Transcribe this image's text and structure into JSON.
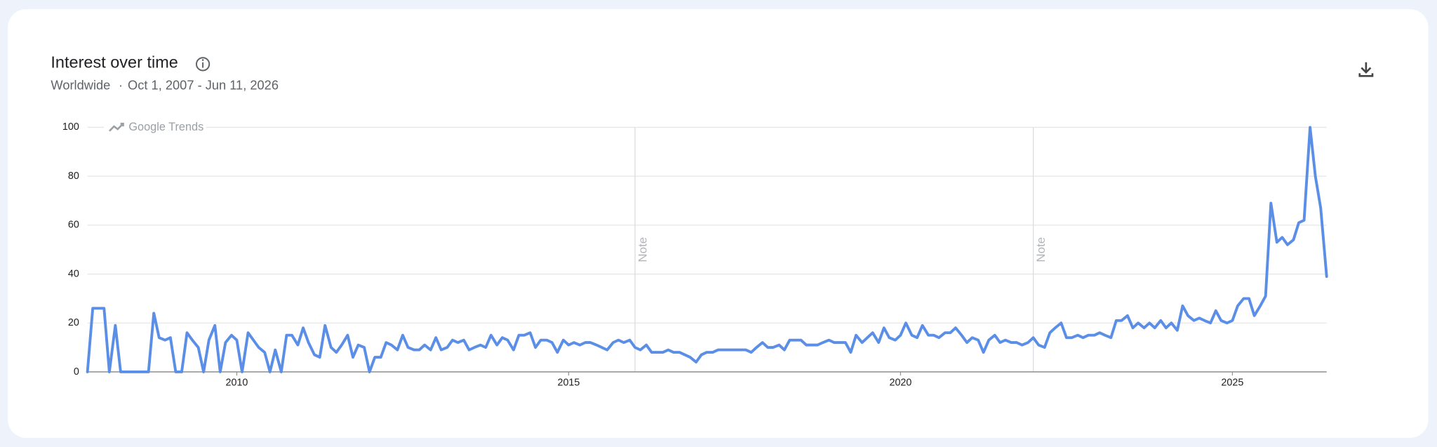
{
  "header": {
    "title": "Interest over time",
    "region": "Worldwide",
    "period": "Oct 1, 2007 - Jun 11, 2026",
    "watermark": "Google Trends"
  },
  "chart_data": {
    "type": "line",
    "x": [
      2007.75,
      2007.83,
      2007.92,
      2008,
      2008.08,
      2008.17,
      2008.25,
      2008.33,
      2008.42,
      2008.5,
      2008.58,
      2008.67,
      2008.75,
      2008.83,
      2008.92,
      2009,
      2009.08,
      2009.17,
      2009.25,
      2009.33,
      2009.42,
      2009.5,
      2009.58,
      2009.67,
      2009.75,
      2009.83,
      2009.92,
      2010,
      2010.08,
      2010.17,
      2010.25,
      2010.33,
      2010.42,
      2010.5,
      2010.58,
      2010.67,
      2010.75,
      2010.83,
      2010.92,
      2011,
      2011.08,
      2011.17,
      2011.25,
      2011.33,
      2011.42,
      2011.5,
      2011.58,
      2011.67,
      2011.75,
      2011.83,
      2011.92,
      2012,
      2012.08,
      2012.17,
      2012.25,
      2012.33,
      2012.42,
      2012.5,
      2012.58,
      2012.67,
      2012.75,
      2012.83,
      2012.92,
      2013,
      2013.08,
      2013.17,
      2013.25,
      2013.33,
      2013.42,
      2013.5,
      2013.58,
      2013.67,
      2013.75,
      2013.83,
      2013.92,
      2014,
      2014.08,
      2014.17,
      2014.25,
      2014.33,
      2014.42,
      2014.5,
      2014.58,
      2014.67,
      2014.75,
      2014.83,
      2014.92,
      2015,
      2015.08,
      2015.17,
      2015.25,
      2015.33,
      2015.42,
      2015.5,
      2015.58,
      2015.67,
      2015.75,
      2015.83,
      2015.92,
      2016,
      2016.08,
      2016.17,
      2016.25,
      2016.33,
      2016.42,
      2016.5,
      2016.58,
      2016.67,
      2016.75,
      2016.83,
      2016.92,
      2017,
      2017.08,
      2017.17,
      2017.25,
      2017.33,
      2017.42,
      2017.5,
      2017.58,
      2017.67,
      2017.75,
      2017.83,
      2017.92,
      2018,
      2018.08,
      2018.17,
      2018.25,
      2018.33,
      2018.42,
      2018.5,
      2018.58,
      2018.67,
      2018.75,
      2018.83,
      2018.92,
      2019,
      2019.08,
      2019.17,
      2019.25,
      2019.33,
      2019.42,
      2019.5,
      2019.58,
      2019.67,
      2019.75,
      2019.83,
      2019.92,
      2020,
      2020.08,
      2020.17,
      2020.25,
      2020.33,
      2020.42,
      2020.5,
      2020.58,
      2020.67,
      2020.75,
      2020.83,
      2020.92,
      2021,
      2021.08,
      2021.17,
      2021.25,
      2021.33,
      2021.42,
      2021.5,
      2021.58,
      2021.67,
      2021.75,
      2021.83,
      2021.92,
      2022,
      2022.08,
      2022.17,
      2022.25,
      2022.33,
      2022.42,
      2022.5,
      2022.58,
      2022.67,
      2022.75,
      2022.83,
      2022.92,
      2023,
      2023.08,
      2023.17,
      2023.25,
      2023.33,
      2023.42,
      2023.5,
      2023.58,
      2023.67,
      2023.75,
      2023.83,
      2023.92,
      2024,
      2024.08,
      2024.17,
      2024.25,
      2024.33,
      2024.42,
      2024.5,
      2024.58,
      2024.67,
      2024.75,
      2024.83,
      2024.92,
      2025,
      2025.08,
      2025.17,
      2025.25,
      2025.33,
      2025.42,
      2025.5,
      2025.58,
      2025.67,
      2025.75,
      2025.83,
      2025.92,
      2026,
      2026.08,
      2026.17,
      2026.25,
      2026.33,
      2026.42
    ],
    "series": [
      {
        "color": "#5b8ee6",
        "values": [
          0,
          26,
          26,
          26,
          0,
          19,
          0,
          0,
          0,
          0,
          0,
          0,
          24,
          14,
          13,
          14,
          0,
          0,
          16,
          13,
          10,
          0,
          13,
          19,
          0,
          12,
          15,
          13,
          0,
          16,
          13,
          10,
          8,
          0,
          9,
          0,
          15,
          15,
          11,
          18,
          12,
          7,
          6,
          19,
          10,
          8,
          11,
          15,
          6,
          11,
          10,
          0,
          6,
          6,
          12,
          11,
          9,
          15,
          10,
          9,
          9,
          11,
          9,
          14,
          9,
          10,
          13,
          12,
          13,
          9,
          10,
          11,
          10,
          15,
          11,
          14,
          13,
          9,
          15,
          15,
          16,
          10,
          13,
          13,
          12,
          8,
          13,
          11,
          12,
          11,
          12,
          12,
          11,
          10,
          9,
          12,
          13,
          12,
          13,
          10,
          9,
          11,
          8,
          8,
          8,
          9,
          8,
          8,
          7,
          6,
          4,
          7,
          8,
          8,
          9,
          9,
          9,
          9,
          9,
          9,
          8,
          10,
          12,
          10,
          10,
          11,
          9,
          13,
          13,
          13,
          11,
          11,
          11,
          12,
          13,
          12,
          12,
          12,
          8,
          15,
          12,
          14,
          16,
          12,
          18,
          14,
          13,
          15,
          20,
          15,
          14,
          19,
          15,
          15,
          14,
          16,
          16,
          18,
          15,
          12,
          14,
          13,
          8,
          13,
          15,
          12,
          13,
          12,
          12,
          11,
          12,
          14,
          11,
          10,
          16,
          18,
          20,
          14,
          14,
          15,
          14,
          15,
          15,
          16,
          15,
          14,
          21,
          21,
          23,
          18,
          20,
          18,
          20,
          18,
          21,
          18,
          20,
          17,
          27,
          23,
          21,
          22,
          21,
          20,
          25,
          21,
          20,
          21,
          27,
          30,
          30,
          23,
          27,
          31,
          69,
          53,
          55,
          52,
          54,
          61,
          62,
          100,
          80,
          67,
          39
        ]
      }
    ],
    "xlim": [
      2007.75,
      2026.42
    ],
    "xticks": [
      2010,
      2015,
      2020,
      2025
    ],
    "ylim": [
      0,
      100
    ],
    "yticks": [
      0,
      20,
      40,
      60,
      80,
      100
    ],
    "grid": true,
    "annotations": [
      {
        "x": 2016,
        "text": "Note"
      },
      {
        "x": 2022,
        "text": "Note"
      }
    ]
  }
}
